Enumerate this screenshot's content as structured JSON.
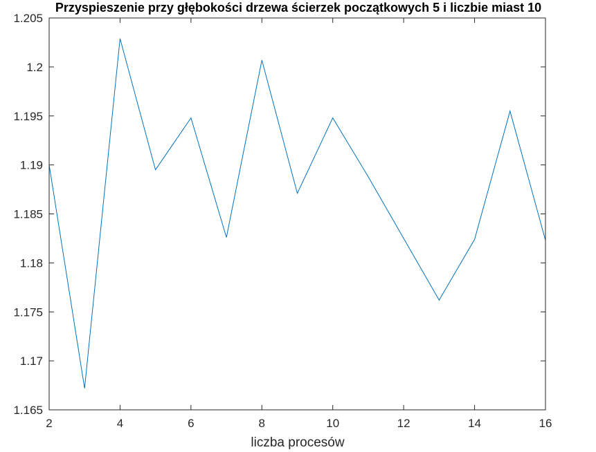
{
  "chart_data": {
    "type": "line",
    "title": "Przyspieszenie przy głębokości drzewa ścierzek początkowych 5 i liczbie miast 10",
    "xlabel": "liczba procesów",
    "ylabel": "",
    "xlim": [
      2,
      16
    ],
    "ylim": [
      1.165,
      1.205
    ],
    "xticks": [
      "2",
      "4",
      "6",
      "8",
      "10",
      "12",
      "14",
      "16"
    ],
    "yticks": [
      "1.165",
      "1.17",
      "1.175",
      "1.18",
      "1.185",
      "1.19",
      "1.195",
      "1.2",
      "1.205"
    ],
    "grid": false,
    "line_color": "#0072BD",
    "series": [
      {
        "x": [
          2,
          3,
          4,
          5,
          6,
          7,
          8,
          9,
          10,
          11,
          12,
          13,
          14,
          15,
          16
        ],
        "values": [
          1.19,
          1.1672,
          1.2029,
          1.1895,
          1.1948,
          1.1826,
          1.2007,
          1.1871,
          1.1948,
          1.1888,
          1.1825,
          1.1762,
          1.1824,
          1.1955,
          1.1823
        ]
      }
    ]
  }
}
